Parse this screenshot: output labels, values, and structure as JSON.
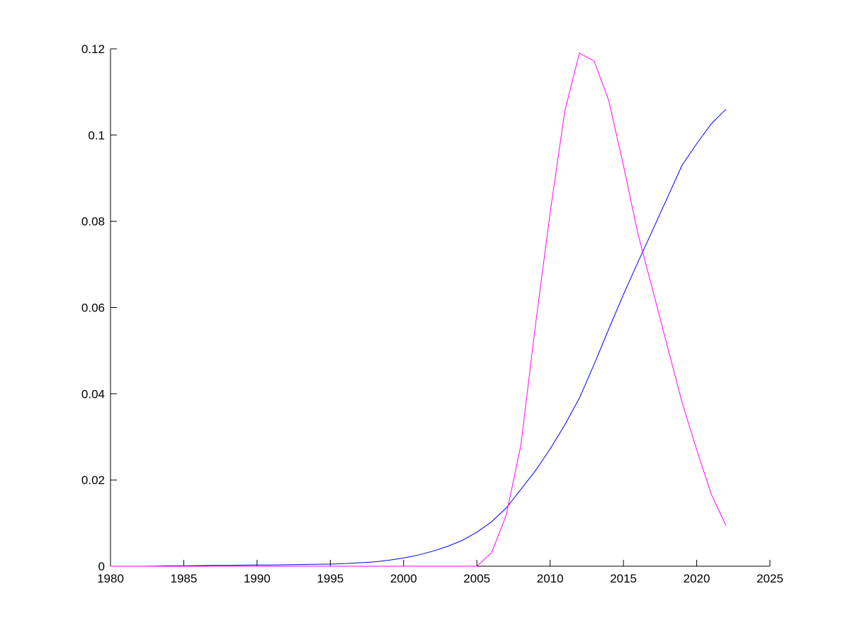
{
  "chart_data": {
    "type": "line",
    "title": "",
    "xlabel": "",
    "ylabel": "",
    "xlim": [
      1980,
      2025
    ],
    "ylim": [
      0,
      0.12
    ],
    "grid": false,
    "xticks": [
      "1980",
      "1985",
      "1990",
      "1995",
      "2000",
      "2005",
      "2010",
      "2015",
      "2020",
      "2025"
    ],
    "yticks": [
      "0",
      "0.02",
      "0.04",
      "0.06",
      "0.08",
      "0.1",
      "0.12"
    ],
    "series": [
      {
        "color": "#0000ff",
        "x": [
          1980,
          1981,
          1982,
          1983,
          1984,
          1985,
          1986,
          1987,
          1988,
          1989,
          1990,
          1991,
          1992,
          1993,
          1994,
          1995,
          1996,
          1997,
          1998,
          1999,
          2000,
          2001,
          2002,
          2003,
          2004,
          2005,
          2006,
          2007,
          2008,
          2009,
          2010,
          2011,
          2012,
          2013,
          2014,
          2015,
          2016,
          2017,
          2018,
          2019,
          2020,
          2021,
          2022
        ],
        "y": [
          0,
          0,
          0,
          5e-05,
          0.0001,
          0.0001,
          0.00015,
          0.0002,
          0.0002,
          0.00025,
          0.0003,
          0.0003,
          0.00035,
          0.0004,
          0.00045,
          0.0005,
          0.0006,
          0.0008,
          0.001,
          0.0014,
          0.0019,
          0.0026,
          0.0035,
          0.0046,
          0.006,
          0.0079,
          0.0103,
          0.0135,
          0.0178,
          0.0222,
          0.0272,
          0.0328,
          0.039,
          0.0468,
          0.055,
          0.063,
          0.0706,
          0.078,
          0.0855,
          0.093,
          0.098,
          0.1026,
          0.106
        ]
      },
      {
        "color": "#ff00ff",
        "x": [
          1980,
          1985,
          1990,
          1995,
          2000,
          2005,
          2006,
          2007,
          2008,
          2009,
          2010,
          2011,
          2012,
          2013,
          2014,
          2015,
          2016,
          2017,
          2018,
          2019,
          2020,
          2021,
          2022
        ],
        "y": [
          0,
          0,
          0,
          0,
          0,
          0,
          0.0031,
          0.0118,
          0.028,
          0.056,
          0.082,
          0.1056,
          0.119,
          0.1172,
          0.108,
          0.093,
          0.077,
          0.064,
          0.051,
          0.038,
          0.027,
          0.0167,
          0.0094
        ]
      }
    ]
  }
}
